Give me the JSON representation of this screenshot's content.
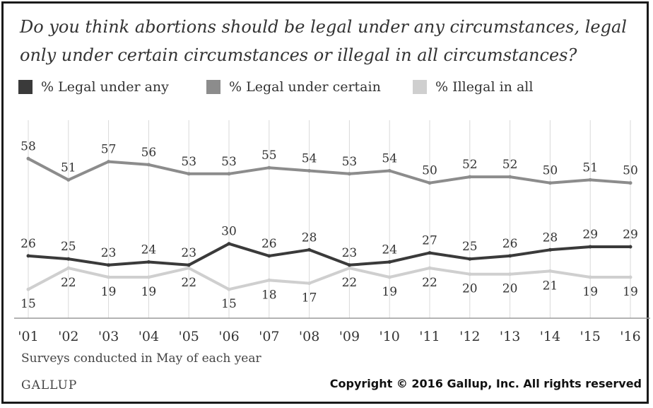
{
  "chart_data": {
    "type": "line",
    "title": "Do you think abortions should be legal under any circumstances, legal only under certain circumstances or illegal in all circumstances?",
    "x": [
      "'01",
      "'02",
      "'03",
      "'04",
      "'05",
      "'06",
      "'07",
      "'08",
      "'09",
      "'10",
      "'11",
      "'12",
      "'13",
      "'14",
      "'15",
      "'16"
    ],
    "series": [
      {
        "name": "% Legal under any",
        "color": "#3a3a3a",
        "values": [
          26,
          25,
          23,
          24,
          23,
          30,
          26,
          28,
          23,
          24,
          27,
          25,
          26,
          28,
          29,
          29
        ]
      },
      {
        "name": "% Legal under certain",
        "color": "#8c8c8c",
        "values": [
          58,
          51,
          57,
          56,
          53,
          53,
          55,
          54,
          53,
          54,
          50,
          52,
          52,
          50,
          51,
          50
        ]
      },
      {
        "name": "% Illegal in all",
        "color": "#cfcfcf",
        "values": [
          15,
          22,
          19,
          19,
          22,
          15,
          18,
          17,
          22,
          19,
          22,
          20,
          20,
          21,
          19,
          19
        ]
      }
    ],
    "grid": "vertical",
    "legend_position": "top-left",
    "note": "Surveys conducted in May of each year"
  },
  "footer": {
    "brand": "GALLUP",
    "copyright": "Copyright © 2016 Gallup, Inc. All rights reserved"
  }
}
